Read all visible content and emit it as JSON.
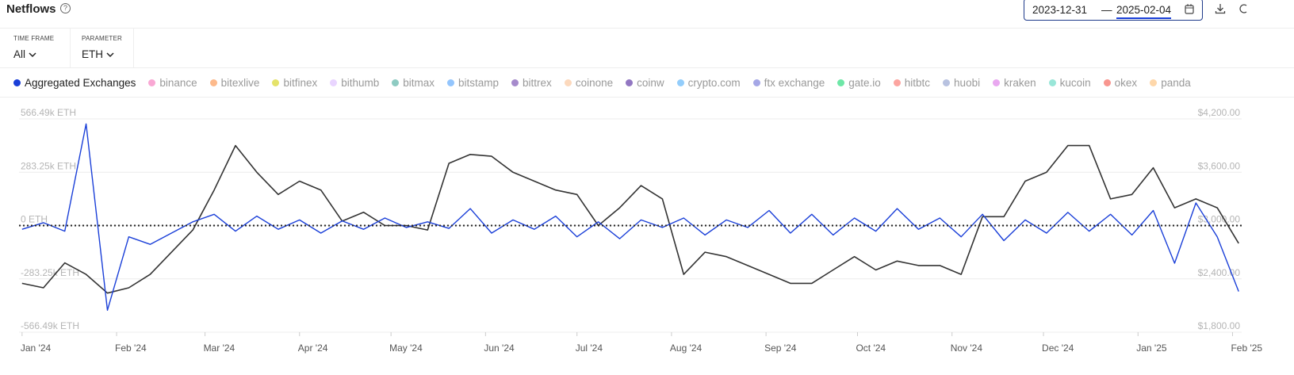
{
  "header": {
    "title": "Netflows",
    "date_from": "2023-12-31",
    "date_sep": "—",
    "date_to": "2025-02-04"
  },
  "controls": [
    {
      "label": "TIME FRAME",
      "value": "All"
    },
    {
      "label": "PARAMETER",
      "value": "ETH"
    }
  ],
  "exchanges": [
    {
      "name": "binance",
      "color": "#f9a8d4"
    },
    {
      "name": "bitexlive",
      "color": "#fdba8c"
    },
    {
      "name": "bitfinex",
      "color": "#e5e36a"
    },
    {
      "name": "bithumb",
      "color": "#e9d5ff"
    },
    {
      "name": "bitmax",
      "color": "#8ecbc2"
    },
    {
      "name": "bitstamp",
      "color": "#93c5fd"
    },
    {
      "name": "bittrex",
      "color": "#a68bcc"
    },
    {
      "name": "coinone",
      "color": "#fcd9bd"
    },
    {
      "name": "coinw",
      "color": "#9277c2"
    },
    {
      "name": "crypto.com",
      "color": "#93cdfb"
    },
    {
      "name": "ftx exchange",
      "color": "#a5a7e6"
    },
    {
      "name": "gate.io",
      "color": "#6ee7a7"
    },
    {
      "name": "hitbtc",
      "color": "#fca5a0"
    },
    {
      "name": "huobi",
      "color": "#b8c2e0"
    },
    {
      "name": "kraken",
      "color": "#e9a8f0"
    },
    {
      "name": "kucoin",
      "color": "#99e6d8"
    },
    {
      "name": "okex",
      "color": "#f8968f"
    },
    {
      "name": "panda",
      "color": "#fed7aa"
    }
  ],
  "chart_data": {
    "type": "line",
    "grid": true,
    "x": [
      "2024-01-01",
      "2024-01-08",
      "2024-01-15",
      "2024-01-22",
      "2024-01-29",
      "2024-02-05",
      "2024-02-12",
      "2024-02-19",
      "2024-02-26",
      "2024-03-04",
      "2024-03-11",
      "2024-03-18",
      "2024-03-25",
      "2024-04-01",
      "2024-04-08",
      "2024-04-15",
      "2024-04-22",
      "2024-04-29",
      "2024-05-06",
      "2024-05-13",
      "2024-05-20",
      "2024-05-27",
      "2024-06-03",
      "2024-06-10",
      "2024-06-17",
      "2024-06-24",
      "2024-07-01",
      "2024-07-08",
      "2024-07-15",
      "2024-07-22",
      "2024-07-29",
      "2024-08-05",
      "2024-08-12",
      "2024-08-19",
      "2024-08-26",
      "2024-09-02",
      "2024-09-09",
      "2024-09-16",
      "2024-09-23",
      "2024-09-30",
      "2024-10-07",
      "2024-10-14",
      "2024-10-21",
      "2024-10-28",
      "2024-11-04",
      "2024-11-11",
      "2024-11-18",
      "2024-11-25",
      "2024-12-02",
      "2024-12-09",
      "2024-12-16",
      "2024-12-23",
      "2024-12-30",
      "2025-01-06",
      "2025-01-13",
      "2025-01-20",
      "2025-01-27",
      "2025-02-03"
    ],
    "xlim": [
      "2023-12-31",
      "2025-02-04"
    ],
    "xticks": [
      {
        "value": "2024-01-01",
        "label": "Jan '24"
      },
      {
        "value": "2024-02-01",
        "label": "Feb '24"
      },
      {
        "value": "2024-03-01",
        "label": "Mar '24"
      },
      {
        "value": "2024-04-01",
        "label": "Apr '24"
      },
      {
        "value": "2024-05-01",
        "label": "May '24"
      },
      {
        "value": "2024-06-01",
        "label": "Jun '24"
      },
      {
        "value": "2024-07-01",
        "label": "Jul '24"
      },
      {
        "value": "2024-08-01",
        "label": "Aug '24"
      },
      {
        "value": "2024-09-01",
        "label": "Sep '24"
      },
      {
        "value": "2024-10-01",
        "label": "Oct '24"
      },
      {
        "value": "2024-11-01",
        "label": "Nov '24"
      },
      {
        "value": "2024-12-01",
        "label": "Dec '24"
      },
      {
        "value": "2025-01-01",
        "label": "Jan '25"
      },
      {
        "value": "2025-02-01",
        "label": "Feb '25"
      }
    ],
    "ylim": [
      -566490,
      566490
    ],
    "yticks": [
      {
        "value": 566490,
        "label": "566.49k ETH"
      },
      {
        "value": 283250,
        "label": "283.25k ETH"
      },
      {
        "value": 0,
        "label": "0 ETH"
      },
      {
        "value": -283250,
        "label": "-283.25k ETH"
      },
      {
        "value": -566490,
        "label": "-566.49k ETH"
      }
    ],
    "y2lim": [
      1800,
      4200
    ],
    "y2ticks": [
      {
        "value": 4200,
        "label": "$4,200.00"
      },
      {
        "value": 3600,
        "label": "$3,600.00"
      },
      {
        "value": 3000,
        "label": "$3,000.00"
      },
      {
        "value": 2400,
        "label": "$2,400.00"
      },
      {
        "value": 1800,
        "label": "$1,800.00"
      }
    ],
    "series": [
      {
        "name": "Aggregated Exchanges",
        "color": "#1a3fd8",
        "values": [
          -20000,
          15000,
          -30000,
          540000,
          -450000,
          -60000,
          -100000,
          -40000,
          20000,
          60000,
          -30000,
          50000,
          -20000,
          30000,
          -40000,
          25000,
          -20000,
          40000,
          -10000,
          20000,
          -15000,
          90000,
          -40000,
          30000,
          -20000,
          50000,
          -60000,
          20000,
          -70000,
          30000,
          -10000,
          40000,
          -50000,
          30000,
          -10000,
          80000,
          -40000,
          60000,
          -50000,
          40000,
          -30000,
          90000,
          -20000,
          40000,
          -60000,
          60000,
          -80000,
          30000,
          -40000,
          70000,
          -30000,
          60000,
          -50000,
          80000,
          -200000,
          120000,
          -60000,
          -350000
        ]
      },
      {
        "color": "#333333",
        "axis": "y2",
        "values": [
          2350,
          2300,
          2580,
          2450,
          2240,
          2300,
          2450,
          2700,
          2950,
          3400,
          3900,
          3600,
          3350,
          3500,
          3400,
          3050,
          3150,
          3000,
          3000,
          2950,
          3700,
          3800,
          3780,
          3600,
          3500,
          3400,
          3350,
          3000,
          3200,
          3450,
          3300,
          2450,
          2700,
          2650,
          2550,
          2450,
          2350,
          2350,
          2500,
          2650,
          2500,
          2600,
          2550,
          2550,
          2450,
          3100,
          3100,
          3500,
          3600,
          3900,
          3900,
          3300,
          3350,
          3650,
          3200,
          3300,
          3200,
          2800
        ]
      }
    ]
  }
}
